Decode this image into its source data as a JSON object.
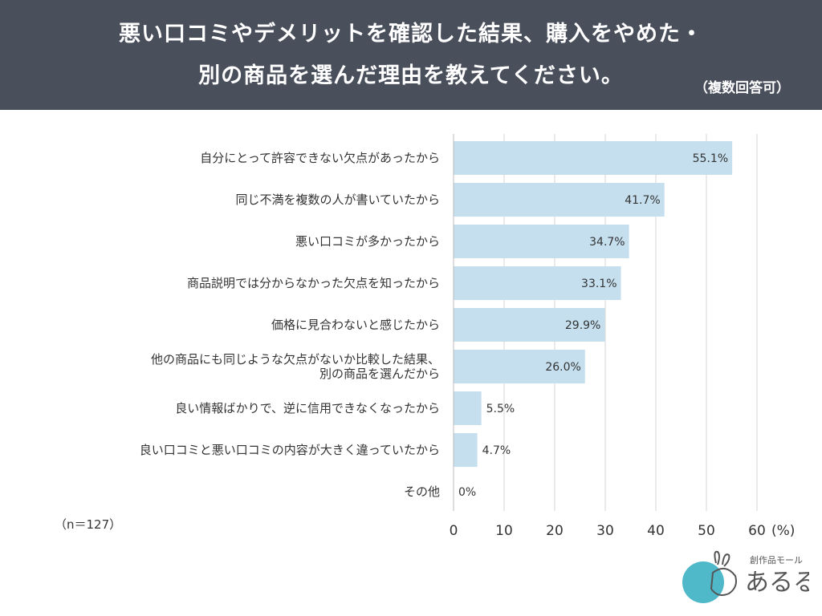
{
  "header": {
    "title_line1": "悪い口コミやデメリットを確認した結果、購入をやめた・",
    "title_line2": "別の商品を選んだ理由を教えてください。",
    "note": "（複数回答可）"
  },
  "sample_size": "（n＝127）",
  "logo": {
    "small_text": "創作品モール",
    "brand_text": "あるる"
  },
  "colors": {
    "header_bg": "#4a4f5c",
    "bar": "#c5dfef",
    "grid": "#d4d4d4"
  },
  "chart_data": {
    "type": "bar",
    "orientation": "horizontal",
    "title": "悪い口コミやデメリットを確認した結果、購入をやめた・別の商品を選んだ理由を教えてください。",
    "categories": [
      [
        "自分にとって許容できない欠点があったから"
      ],
      [
        "同じ不満を複数の人が書いていたから"
      ],
      [
        "悪い口コミが多かったから"
      ],
      [
        "商品説明では分からなかった欠点を知ったから"
      ],
      [
        "価格に見合わないと感じたから"
      ],
      [
        "他の商品にも同じような欠点がないか比較した結果、",
        "別の商品を選んだから"
      ],
      [
        "良い情報ばかりで、逆に信用できなくなったから"
      ],
      [
        "良い口コミと悪い口コミの内容が大きく違っていたから"
      ],
      [
        "その他"
      ]
    ],
    "values": [
      55.1,
      41.7,
      34.7,
      33.1,
      29.9,
      26.0,
      5.5,
      4.7,
      0
    ],
    "value_labels": [
      "55.1%",
      "41.7%",
      "34.7%",
      "33.1%",
      "29.9%",
      "26.0%",
      "5.5%",
      "4.7%",
      "0%"
    ],
    "xlim": [
      0,
      60
    ],
    "xticks": [
      0,
      10,
      20,
      30,
      40,
      50,
      60
    ],
    "xtick_labels": [
      "0",
      "10",
      "20",
      "30",
      "40",
      "50",
      "60"
    ],
    "unit_label": "(%)",
    "grid": true
  }
}
